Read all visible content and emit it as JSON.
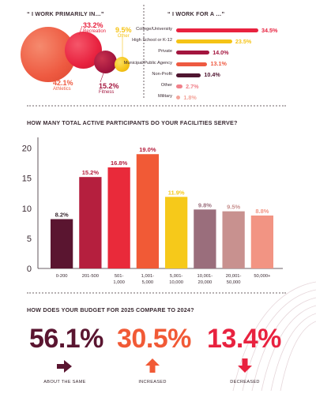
{
  "colors": {
    "athletics": "#ee5a41",
    "recreation": "#e8223f",
    "fitness": "#a3153e",
    "other": "#f5c316",
    "dark": "#5a1530",
    "crimson": "#b51f3e",
    "red": "#e92a3a",
    "orange": "#f15a36",
    "yellow": "#f6c91a",
    "mauve": "#9a6e7c",
    "dusty": "#c8918f",
    "salmon": "#f29483"
  },
  "primarily": {
    "title": "“ I WORK PRIMARILY IN…”",
    "items": [
      {
        "pct": "42.1%",
        "label": "Athletics"
      },
      {
        "pct": "33.2%",
        "label": "Recreation"
      },
      {
        "pct": "15.2%",
        "label": "Fitness"
      },
      {
        "pct": "9.5%",
        "label": "Other"
      }
    ]
  },
  "work_for": {
    "title": "“ I WORK FOR A …”",
    "items": [
      {
        "label": "College/University",
        "value": 34.5,
        "pct": "34.5%",
        "color": "#e8223f"
      },
      {
        "label": "High School or K-12",
        "value": 23.5,
        "pct": "23.5%",
        "color": "#f5c316"
      },
      {
        "label": "Private",
        "value": 14.0,
        "pct": "14.0%",
        "color": "#a3153e"
      },
      {
        "label": "Municipal/Public Agency",
        "value": 13.1,
        "pct": "13.1%",
        "color": "#ee5a41"
      },
      {
        "label": "Non-Profit",
        "value": 10.4,
        "pct": "10.4%",
        "color": "#4f1530"
      },
      {
        "label": "Other",
        "value": 2.7,
        "pct": "2.7%",
        "color": "#f0808a"
      },
      {
        "label": "Military",
        "value": 1.8,
        "pct": "1.8%",
        "color": "#f4a49a"
      }
    ]
  },
  "participants": {
    "title": "HOW MANY TOTAL ACTIVE PARTICIPANTS DO YOUR FACILITIES SERVE?"
  },
  "chart_data": {
    "type": "bar",
    "title": "HOW MANY TOTAL ACTIVE PARTICIPANTS DO YOUR FACILITIES SERVE?",
    "categories": [
      "0-200",
      "201-500",
      "501-1,000",
      "1,001-5,000",
      "5,001-10,000",
      "10,001-20,000",
      "20,001-50,000",
      "50,000+"
    ],
    "category_lines": [
      [
        "0-200"
      ],
      [
        "201-500"
      ],
      [
        "501-",
        "1,000"
      ],
      [
        "1,001-",
        "5,000"
      ],
      [
        "5,001-",
        "10,000"
      ],
      [
        "10,001-",
        "20,000"
      ],
      [
        "20,001-",
        "50,000"
      ],
      [
        "50,000+"
      ]
    ],
    "values": [
      8.2,
      15.2,
      16.8,
      19.0,
      11.9,
      9.8,
      9.5,
      8.8
    ],
    "value_labels": [
      "8.2%",
      "15.2%",
      "16.8%",
      "19.0%",
      "11.9%",
      "9.8%",
      "9.5%",
      "8.8%"
    ],
    "bar_colors": [
      "#5a1530",
      "#b51f3e",
      "#e92a3a",
      "#f15a36",
      "#f6c91a",
      "#9a6e7c",
      "#c8918f",
      "#f29483"
    ],
    "label_colors": [
      "#3a2a32",
      "#b51f3e",
      "#b51f3e",
      "#b51f3e",
      "#f6c91a",
      "#9a6e7c",
      "#c8918f",
      "#f29483"
    ],
    "yticks": [
      0,
      5,
      10,
      15,
      20
    ],
    "ytick_labels": [
      "0",
      "5",
      "10",
      "15",
      "20"
    ],
    "ylim": [
      0,
      21
    ],
    "grid": false,
    "xlabel": "",
    "ylabel": ""
  },
  "budget": {
    "title": "HOW DOES YOUR BUDGET FOR 2025 COMPARE TO 2024?",
    "items": [
      {
        "pct": "56.1%",
        "caption": "ABOUT THE SAME",
        "icon": "arrow-right-icon"
      },
      {
        "pct": "30.5%",
        "caption": "INCREASED",
        "icon": "arrow-up-icon"
      },
      {
        "pct": "13.4%",
        "caption": "DECREASED",
        "icon": "arrow-down-icon"
      }
    ]
  }
}
